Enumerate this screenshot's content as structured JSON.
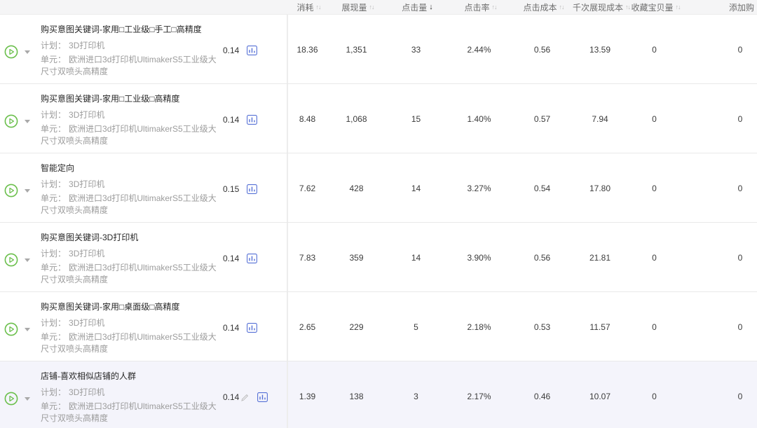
{
  "colors": {
    "accent_green": "#6abf4b",
    "icon_blue": "#5570d6",
    "highlight_row_bg": "#f4f4fb",
    "header_bg": "#f5f5f6"
  },
  "icons": {
    "sort_asc_glyph": "↑",
    "sort_desc_glyph": "↓"
  },
  "table": {
    "columns": [
      {
        "label": "消耗",
        "sort": "both"
      },
      {
        "label": "展现量",
        "sort": "both"
      },
      {
        "label": "点击量",
        "sort": "active-desc"
      },
      {
        "label": "点击率",
        "sort": "both"
      },
      {
        "label": "点击成本",
        "sort": "both"
      },
      {
        "label": "千次展现成本",
        "sort": "both"
      },
      {
        "label": "收藏宝贝量",
        "sort": "both"
      },
      {
        "label": "添加购",
        "sort": "none"
      }
    ],
    "rows": [
      {
        "title": "购买意图关键词-家用□工业级□手工□高精度",
        "plan_label": "计划：",
        "plan_value": "3D打印机",
        "unit_label": "单元：",
        "unit_value": "欧洲进口3d打印机UltimakerS5工业级大尺寸双喷头高精度",
        "bid": "0.14",
        "has_edit": false,
        "highlighted": false,
        "metrics": [
          "18.36",
          "1,351",
          "33",
          "2.44%",
          "0.56",
          "13.59",
          "0",
          "0"
        ]
      },
      {
        "title": "购买意图关键词-家用□工业级□高精度",
        "plan_label": "计划：",
        "plan_value": "3D打印机",
        "unit_label": "单元：",
        "unit_value": "欧洲进口3d打印机UltimakerS5工业级大尺寸双喷头高精度",
        "bid": "0.14",
        "has_edit": false,
        "highlighted": false,
        "metrics": [
          "8.48",
          "1,068",
          "15",
          "1.40%",
          "0.57",
          "7.94",
          "0",
          "0"
        ]
      },
      {
        "title": "智能定向",
        "plan_label": "计划：",
        "plan_value": "3D打印机",
        "unit_label": "单元：",
        "unit_value": "欧洲进口3d打印机UltimakerS5工业级大尺寸双喷头高精度",
        "bid": "0.15",
        "has_edit": false,
        "highlighted": false,
        "metrics": [
          "7.62",
          "428",
          "14",
          "3.27%",
          "0.54",
          "17.80",
          "0",
          "0"
        ]
      },
      {
        "title": "购买意图关键词-3D打印机",
        "plan_label": "计划：",
        "plan_value": "3D打印机",
        "unit_label": "单元：",
        "unit_value": "欧洲进口3d打印机UltimakerS5工业级大尺寸双喷头高精度",
        "bid": "0.14",
        "has_edit": false,
        "highlighted": false,
        "metrics": [
          "7.83",
          "359",
          "14",
          "3.90%",
          "0.56",
          "21.81",
          "0",
          "0"
        ]
      },
      {
        "title": "购买意图关键词-家用□桌面级□高精度",
        "plan_label": "计划：",
        "plan_value": "3D打印机",
        "unit_label": "单元：",
        "unit_value": "欧洲进口3d打印机UltimakerS5工业级大尺寸双喷头高精度",
        "bid": "0.14",
        "has_edit": false,
        "highlighted": false,
        "metrics": [
          "2.65",
          "229",
          "5",
          "2.18%",
          "0.53",
          "11.57",
          "0",
          "0"
        ]
      },
      {
        "title": "店铺-喜欢相似店铺的人群",
        "plan_label": "计划：",
        "plan_value": "3D打印机",
        "unit_label": "单元：",
        "unit_value": "欧洲进口3d打印机UltimakerS5工业级大尺寸双喷头高精度",
        "bid": "0.14",
        "has_edit": true,
        "highlighted": true,
        "metrics": [
          "1.39",
          "138",
          "3",
          "2.17%",
          "0.46",
          "10.07",
          "0",
          "0"
        ]
      }
    ]
  }
}
